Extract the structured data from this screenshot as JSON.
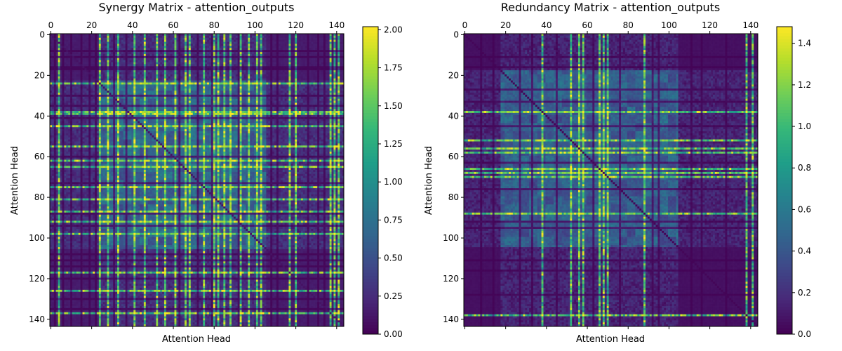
{
  "chart_data": [
    {
      "type": "heatmap",
      "title": "Synergy Matrix - attention_outputs",
      "xlabel": "Attention Head",
      "ylabel": "Attention Head",
      "size": 144,
      "xlim": [
        0,
        143
      ],
      "ylim": [
        143,
        0
      ],
      "x_ticks": [
        "0",
        "20",
        "40",
        "60",
        "80",
        "100",
        "120",
        "140"
      ],
      "y_ticks": [
        "0",
        "20",
        "40",
        "60",
        "80",
        "100",
        "120",
        "140"
      ],
      "colorbar": {
        "min": 0.0,
        "max": 2.02,
        "ticks": [
          "0.00",
          "0.25",
          "0.50",
          "0.75",
          "1.00",
          "1.25",
          "1.50",
          "1.75",
          "2.00"
        ],
        "colormap": "viridis"
      },
      "pattern": {
        "background": 0.15,
        "block_rows": [
          23,
          105
        ],
        "block_cols": [
          24,
          105
        ],
        "block_value": 0.8,
        "bright_rows": [
          24,
          38,
          39,
          45,
          55,
          62,
          65,
          75,
          81,
          87,
          92,
          98,
          117,
          126,
          137
        ],
        "bright_cols": [
          4,
          24,
          28,
          33,
          41,
          46,
          52,
          56,
          61,
          66,
          68,
          75,
          80,
          82,
          85,
          88,
          93,
          97,
          101,
          103,
          117,
          120,
          137,
          139,
          141
        ],
        "dark_rows": [
          8,
          11,
          16,
          17,
          30,
          35,
          41,
          60,
          73,
          88,
          94,
          108,
          111,
          114,
          120,
          130,
          135
        ],
        "dark_cols": [
          2,
          6,
          10,
          15,
          19,
          22,
          31,
          37,
          63,
          72,
          79,
          92,
          108,
          111,
          126,
          131,
          134
        ],
        "diagonal_value": 0.1,
        "peak_value": 2.0
      }
    },
    {
      "type": "heatmap",
      "title": "Redundancy Matrix - attention_outputs",
      "xlabel": "Attention Head",
      "ylabel": "Attention Head",
      "size": 144,
      "xlim": [
        0,
        143
      ],
      "ylim": [
        143,
        0
      ],
      "x_ticks": [
        "0",
        "20",
        "40",
        "60",
        "80",
        "100",
        "120",
        "140"
      ],
      "y_ticks": [
        "0",
        "20",
        "40",
        "60",
        "80",
        "100",
        "120",
        "140"
      ],
      "colorbar": {
        "min": 0.0,
        "max": 1.48,
        "ticks": [
          "0.0",
          "0.2",
          "0.4",
          "0.6",
          "0.8",
          "1.0",
          "1.2",
          "1.4"
        ],
        "colormap": "viridis"
      },
      "pattern": {
        "background": 0.06,
        "block_rows": [
          18,
          104
        ],
        "block_cols": [
          18,
          104
        ],
        "block_value": 0.55,
        "bright_rows": [
          38,
          52,
          56,
          58,
          66,
          68,
          70,
          88,
          138
        ],
        "bright_cols": [
          38,
          52,
          56,
          58,
          66,
          68,
          70,
          88,
          138,
          141
        ],
        "dark_rows": [
          11,
          16,
          27,
          33,
          45,
          63,
          76,
          92,
          95,
          111,
          116,
          128
        ],
        "dark_cols": [
          8,
          14,
          27,
          33,
          45,
          63,
          76,
          92,
          95,
          111,
          116,
          128
        ],
        "diagonal_value": 0.02,
        "peak_value": 1.45
      }
    }
  ]
}
